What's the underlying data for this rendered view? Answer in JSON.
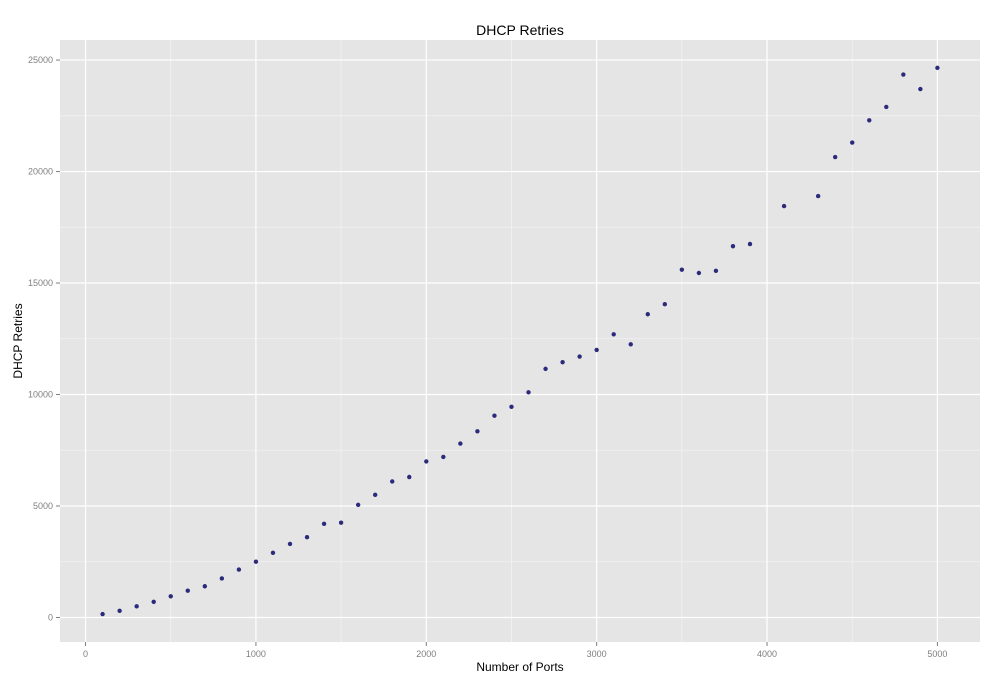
{
  "chart_data": {
    "type": "scatter",
    "title": "DHCP Retries",
    "xlabel": "Number of Ports",
    "ylabel": "DHCP Retries",
    "xlim": [
      -150,
      5250
    ],
    "ylim": [
      -1100,
      25900
    ],
    "x_ticks": [
      0,
      1000,
      2000,
      3000,
      4000,
      5000
    ],
    "x_tick_labels": [
      "0",
      "1000",
      "2000",
      "3000",
      "4000",
      "5000"
    ],
    "y_ticks": [
      0,
      5000,
      10000,
      15000,
      20000,
      25000
    ],
    "y_tick_labels": [
      "0",
      "5000",
      "10000",
      "15000",
      "20000",
      "25000"
    ],
    "grid": true,
    "legend": "none",
    "colors": {
      "panel_background": "#e5e5e5",
      "major_grid": "#ffffff",
      "minor_grid": "#f2f2f2",
      "point": "#2c2a7a"
    },
    "series": [
      {
        "x": [
          100,
          200,
          300,
          400,
          500,
          600,
          700,
          800,
          900,
          1000,
          1100,
          1200,
          1300,
          1400,
          1500,
          1600,
          1700,
          1800,
          1900,
          2000,
          2100,
          2200,
          2300,
          2400,
          2500,
          2600,
          2700,
          2800,
          2900,
          3000,
          3100,
          3200,
          3300,
          3400,
          3500,
          3600,
          3700,
          3800,
          3900,
          4100,
          4300,
          4400,
          4500,
          4600,
          4700,
          4800,
          4900,
          5000
        ],
        "y": [
          150,
          300,
          500,
          700,
          950,
          1200,
          1400,
          1750,
          2150,
          2500,
          2900,
          3300,
          3600,
          4200,
          4250,
          5050,
          5500,
          6100,
          6300,
          7000,
          7200,
          7800,
          8350,
          9050,
          9450,
          10100,
          11150,
          11450,
          11700,
          12000,
          12700,
          12250,
          13600,
          14050,
          15600,
          15450,
          15550,
          16650,
          16750,
          18450,
          18900,
          20650,
          21300,
          22300,
          22900,
          24350,
          23700,
          24650
        ]
      }
    ]
  }
}
